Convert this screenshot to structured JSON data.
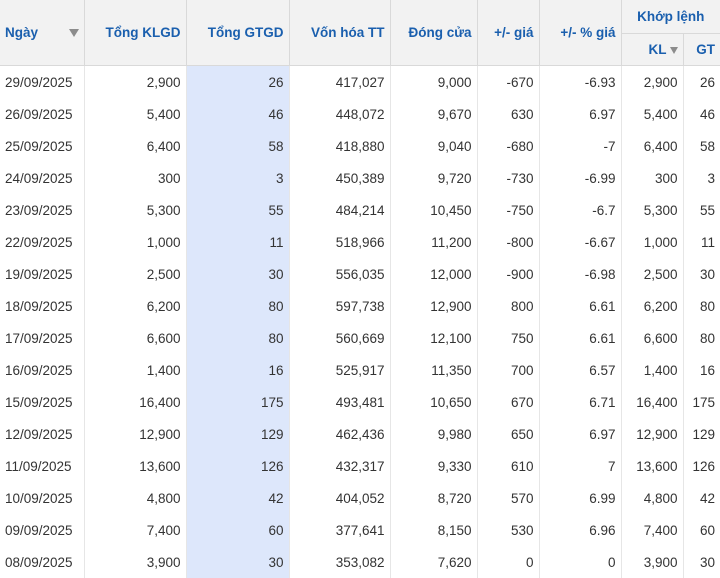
{
  "headers": {
    "ngay": "Ngày",
    "tong_klgd": "Tổng KLGD",
    "tong_gtgd": "Tổng GTGD",
    "von_hoa_tt": "Vốn hóa TT",
    "dong_cua": "Đóng cửa",
    "chg": "+/- giá",
    "chg_pct": "+/- % giá",
    "khop_lenh": "Khớp lệnh",
    "kl": "KL",
    "gt": "GT"
  },
  "colors": {
    "header_text": "#1a5fae",
    "header_bg": "#f2f2f2",
    "highlight_col": "#dde7fb",
    "down": "#1e88e5",
    "up": "#b0139a",
    "reference": "#f4a30a"
  },
  "icons": {
    "sort": "sort-down-triangle-icon"
  },
  "rows": [
    {
      "date": "29/09/2025",
      "klgd": "2,900",
      "gtgd": "26",
      "vonhoa": "417,027",
      "close": "9,000",
      "chg": "-670",
      "pct": "-6.93",
      "kl": "2,900",
      "gt": "26",
      "dir": "down"
    },
    {
      "date": "26/09/2025",
      "klgd": "5,400",
      "gtgd": "46",
      "vonhoa": "448,072",
      "close": "9,670",
      "chg": "630",
      "pct": "6.97",
      "kl": "5,400",
      "gt": "46",
      "dir": "up"
    },
    {
      "date": "25/09/2025",
      "klgd": "6,400",
      "gtgd": "58",
      "vonhoa": "418,880",
      "close": "9,040",
      "chg": "-680",
      "pct": "-7",
      "kl": "6,400",
      "gt": "58",
      "dir": "down"
    },
    {
      "date": "24/09/2025",
      "klgd": "300",
      "gtgd": "3",
      "vonhoa": "450,389",
      "close": "9,720",
      "chg": "-730",
      "pct": "-6.99",
      "kl": "300",
      "gt": "3",
      "dir": "down"
    },
    {
      "date": "23/09/2025",
      "klgd": "5,300",
      "gtgd": "55",
      "vonhoa": "484,214",
      "close": "10,450",
      "chg": "-750",
      "pct": "-6.7",
      "kl": "5,300",
      "gt": "55",
      "dir": "down"
    },
    {
      "date": "22/09/2025",
      "klgd": "1,000",
      "gtgd": "11",
      "vonhoa": "518,966",
      "close": "11,200",
      "chg": "-800",
      "pct": "-6.67",
      "kl": "1,000",
      "gt": "11",
      "dir": "down"
    },
    {
      "date": "19/09/2025",
      "klgd": "2,500",
      "gtgd": "30",
      "vonhoa": "556,035",
      "close": "12,000",
      "chg": "-900",
      "pct": "-6.98",
      "kl": "2,500",
      "gt": "30",
      "dir": "down"
    },
    {
      "date": "18/09/2025",
      "klgd": "6,200",
      "gtgd": "80",
      "vonhoa": "597,738",
      "close": "12,900",
      "chg": "800",
      "pct": "6.61",
      "kl": "6,200",
      "gt": "80",
      "dir": "up"
    },
    {
      "date": "17/09/2025",
      "klgd": "6,600",
      "gtgd": "80",
      "vonhoa": "560,669",
      "close": "12,100",
      "chg": "750",
      "pct": "6.61",
      "kl": "6,600",
      "gt": "80",
      "dir": "up"
    },
    {
      "date": "16/09/2025",
      "klgd": "1,400",
      "gtgd": "16",
      "vonhoa": "525,917",
      "close": "11,350",
      "chg": "700",
      "pct": "6.57",
      "kl": "1,400",
      "gt": "16",
      "dir": "up"
    },
    {
      "date": "15/09/2025",
      "klgd": "16,400",
      "gtgd": "175",
      "vonhoa": "493,481",
      "close": "10,650",
      "chg": "670",
      "pct": "6.71",
      "kl": "16,400",
      "gt": "175",
      "dir": "up"
    },
    {
      "date": "12/09/2025",
      "klgd": "12,900",
      "gtgd": "129",
      "vonhoa": "462,436",
      "close": "9,980",
      "chg": "650",
      "pct": "6.97",
      "kl": "12,900",
      "gt": "129",
      "dir": "up"
    },
    {
      "date": "11/09/2025",
      "klgd": "13,600",
      "gtgd": "126",
      "vonhoa": "432,317",
      "close": "9,330",
      "chg": "610",
      "pct": "7",
      "kl": "13,600",
      "gt": "126",
      "dir": "up"
    },
    {
      "date": "10/09/2025",
      "klgd": "4,800",
      "gtgd": "42",
      "vonhoa": "404,052",
      "close": "8,720",
      "chg": "570",
      "pct": "6.99",
      "kl": "4,800",
      "gt": "42",
      "dir": "up"
    },
    {
      "date": "09/09/2025",
      "klgd": "7,400",
      "gtgd": "60",
      "vonhoa": "377,641",
      "close": "8,150",
      "chg": "530",
      "pct": "6.96",
      "kl": "7,400",
      "gt": "60",
      "dir": "up"
    },
    {
      "date": "08/09/2025",
      "klgd": "3,900",
      "gtgd": "30",
      "vonhoa": "353,082",
      "close": "7,620",
      "chg": "0",
      "pct": "0",
      "kl": "3,900",
      "gt": "30",
      "dir": "ref"
    }
  ]
}
